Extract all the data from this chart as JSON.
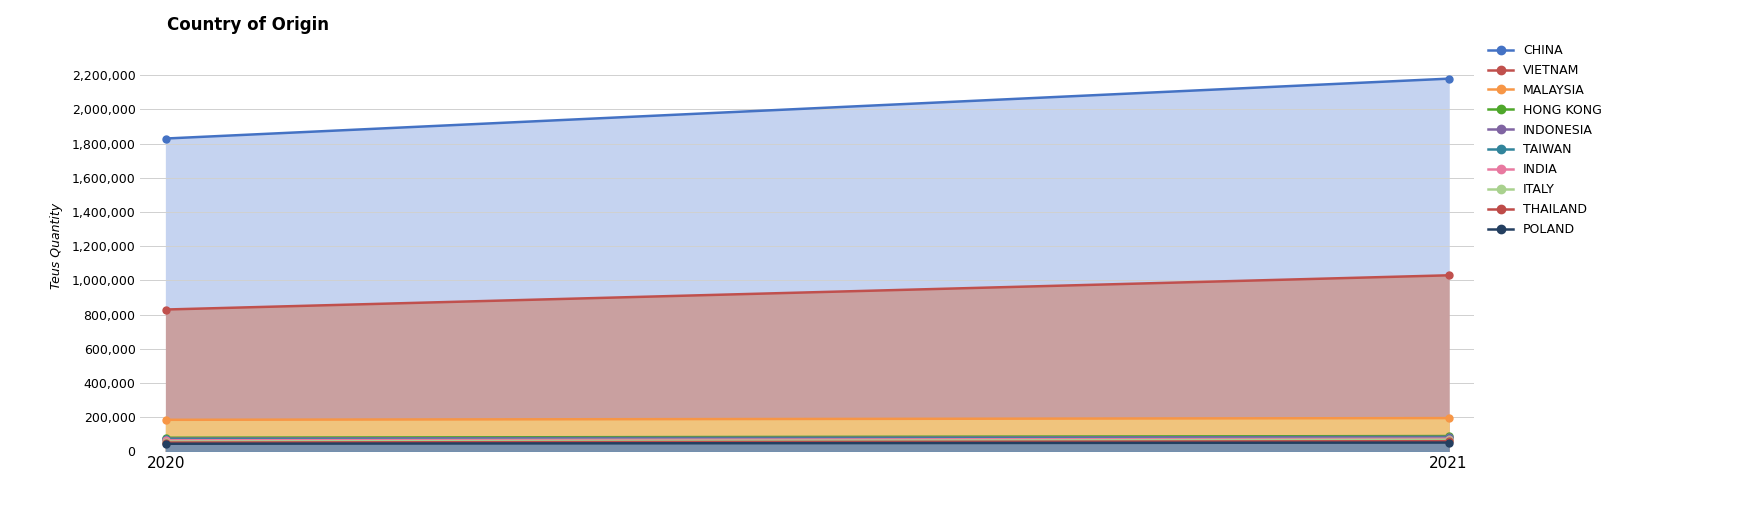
{
  "title": "Country of Origin",
  "ylabel": "Teus Quantity",
  "years": [
    2020,
    2021
  ],
  "series": [
    {
      "label": "CHINA",
      "values": [
        1830000,
        2180000
      ],
      "color": "#4472C4",
      "fill_color": "#C5D3F0"
    },
    {
      "label": "VIETNAM",
      "values": [
        830000,
        1030000
      ],
      "color": "#C0504D",
      "fill_color": "#C9A0A0"
    },
    {
      "label": "MALAYSIA",
      "values": [
        185000,
        195000
      ],
      "color": "#F79646",
      "fill_color": "#F5C97A"
    },
    {
      "label": "HONG KONG",
      "values": [
        80000,
        90000
      ],
      "color": "#4EA72A",
      "fill_color": "#9BBB59"
    },
    {
      "label": "INDONESIA",
      "values": [
        75000,
        85000
      ],
      "color": "#8064A2",
      "fill_color": "#B09CC0"
    },
    {
      "label": "TAIWAN",
      "values": [
        70000,
        80000
      ],
      "color": "#31849B",
      "fill_color": "#70ADBE"
    },
    {
      "label": "INDIA",
      "values": [
        65000,
        75000
      ],
      "color": "#E879A0",
      "fill_color": "#F0A8C0"
    },
    {
      "label": "ITALY",
      "values": [
        58000,
        68000
      ],
      "color": "#A9D18E",
      "fill_color": "#C4E0A8"
    },
    {
      "label": "THAILAND",
      "values": [
        52000,
        60000
      ],
      "color": "#BE4B48",
      "fill_color": "#D09090"
    },
    {
      "label": "POLAND",
      "values": [
        45000,
        52000
      ],
      "color": "#243F60",
      "fill_color": "#7090B0"
    }
  ],
  "ylim": [
    0,
    2400000
  ],
  "yticks": [
    0,
    200000,
    400000,
    600000,
    800000,
    1000000,
    1200000,
    1400000,
    1600000,
    1800000,
    2000000,
    2200000
  ],
  "background_color": "#FFFFFF",
  "grid_color": "#D0D0D0",
  "title_fontsize": 12,
  "label_fontsize": 9,
  "tick_fontsize": 9,
  "legend_fontsize": 9
}
